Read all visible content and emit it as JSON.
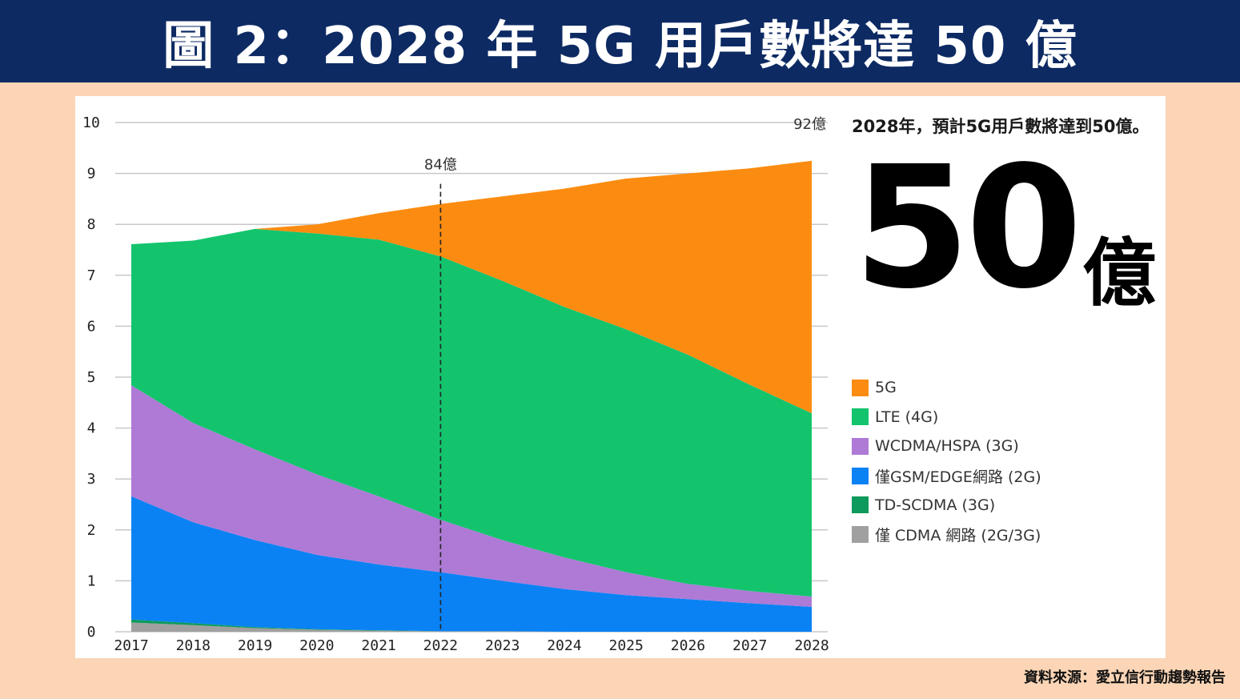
{
  "title": "圖 2：2028 年 5G 用戶數將達 50 億",
  "headline": "2028年，預計5G用戶數將達到50億。",
  "big_number": {
    "value": "50",
    "unit": "億"
  },
  "source": "資料來源：愛立信行動趨勢報告",
  "legend": [
    {
      "label": "5G",
      "color": "#fb8c11"
    },
    {
      "label": "LTE (4G)",
      "color": "#13c46d"
    },
    {
      "label": "WCDMA/HSPA (3G)",
      "color": "#ae7ad6"
    },
    {
      "label": "僅GSM/EDGE網路 (2G)",
      "color": "#0a82f4"
    },
    {
      "label": "TD-SCDMA (3G)",
      "color": "#0e9a5c"
    },
    {
      "label": "僅 CDMA 網路 (2G/3G)",
      "color": "#a0a0a0"
    }
  ],
  "chart_data": {
    "type": "area",
    "stacked": true,
    "x": [
      "2017",
      "2018",
      "2019",
      "2020",
      "2021",
      "2022",
      "2023",
      "2024",
      "2025",
      "2026",
      "2027",
      "2028"
    ],
    "ylim": [
      0,
      10
    ],
    "yticks": [
      "0",
      "1",
      "2",
      "3",
      "4",
      "5",
      "6",
      "7",
      "8",
      "9",
      "10"
    ],
    "grid": true,
    "legend_position": "right",
    "series": [
      {
        "name": "僅 CDMA 網路 (2G/3G)",
        "color": "#a0a0a0",
        "values": [
          0.18,
          0.13,
          0.07,
          0.04,
          0.02,
          0.01,
          0.01,
          0,
          0,
          0,
          0,
          0
        ]
      },
      {
        "name": "TD-SCDMA (3G)",
        "color": "#0e9a5c",
        "values": [
          0.06,
          0.04,
          0.02,
          0.01,
          0.01,
          0,
          0,
          0,
          0,
          0,
          0,
          0
        ]
      },
      {
        "name": "僅GSM/EDGE網路 (2G)",
        "color": "#0a82f4",
        "values": [
          2.42,
          1.98,
          1.71,
          1.46,
          1.29,
          1.16,
          0.99,
          0.84,
          0.72,
          0.64,
          0.56,
          0.49
        ]
      },
      {
        "name": "WCDMA/HSPA (3G)",
        "color": "#ae7ad6",
        "values": [
          2.18,
          1.95,
          1.78,
          1.58,
          1.34,
          1.03,
          0.8,
          0.62,
          0.45,
          0.3,
          0.24,
          0.2
        ]
      },
      {
        "name": "LTE (4G)",
        "color": "#13c46d",
        "values": [
          2.77,
          3.58,
          4.33,
          4.73,
          5.04,
          5.17,
          5.09,
          4.92,
          4.77,
          4.5,
          4.05,
          3.6
        ]
      },
      {
        "name": "5G",
        "color": "#fb8c11",
        "values": [
          0,
          0,
          0,
          0.18,
          0.52,
          1.03,
          1.66,
          2.32,
          2.96,
          3.56,
          4.25,
          4.96
        ]
      }
    ],
    "annotations": [
      {
        "x": "2022",
        "text": "84億"
      },
      {
        "x": "2028",
        "text": "92億"
      }
    ]
  }
}
